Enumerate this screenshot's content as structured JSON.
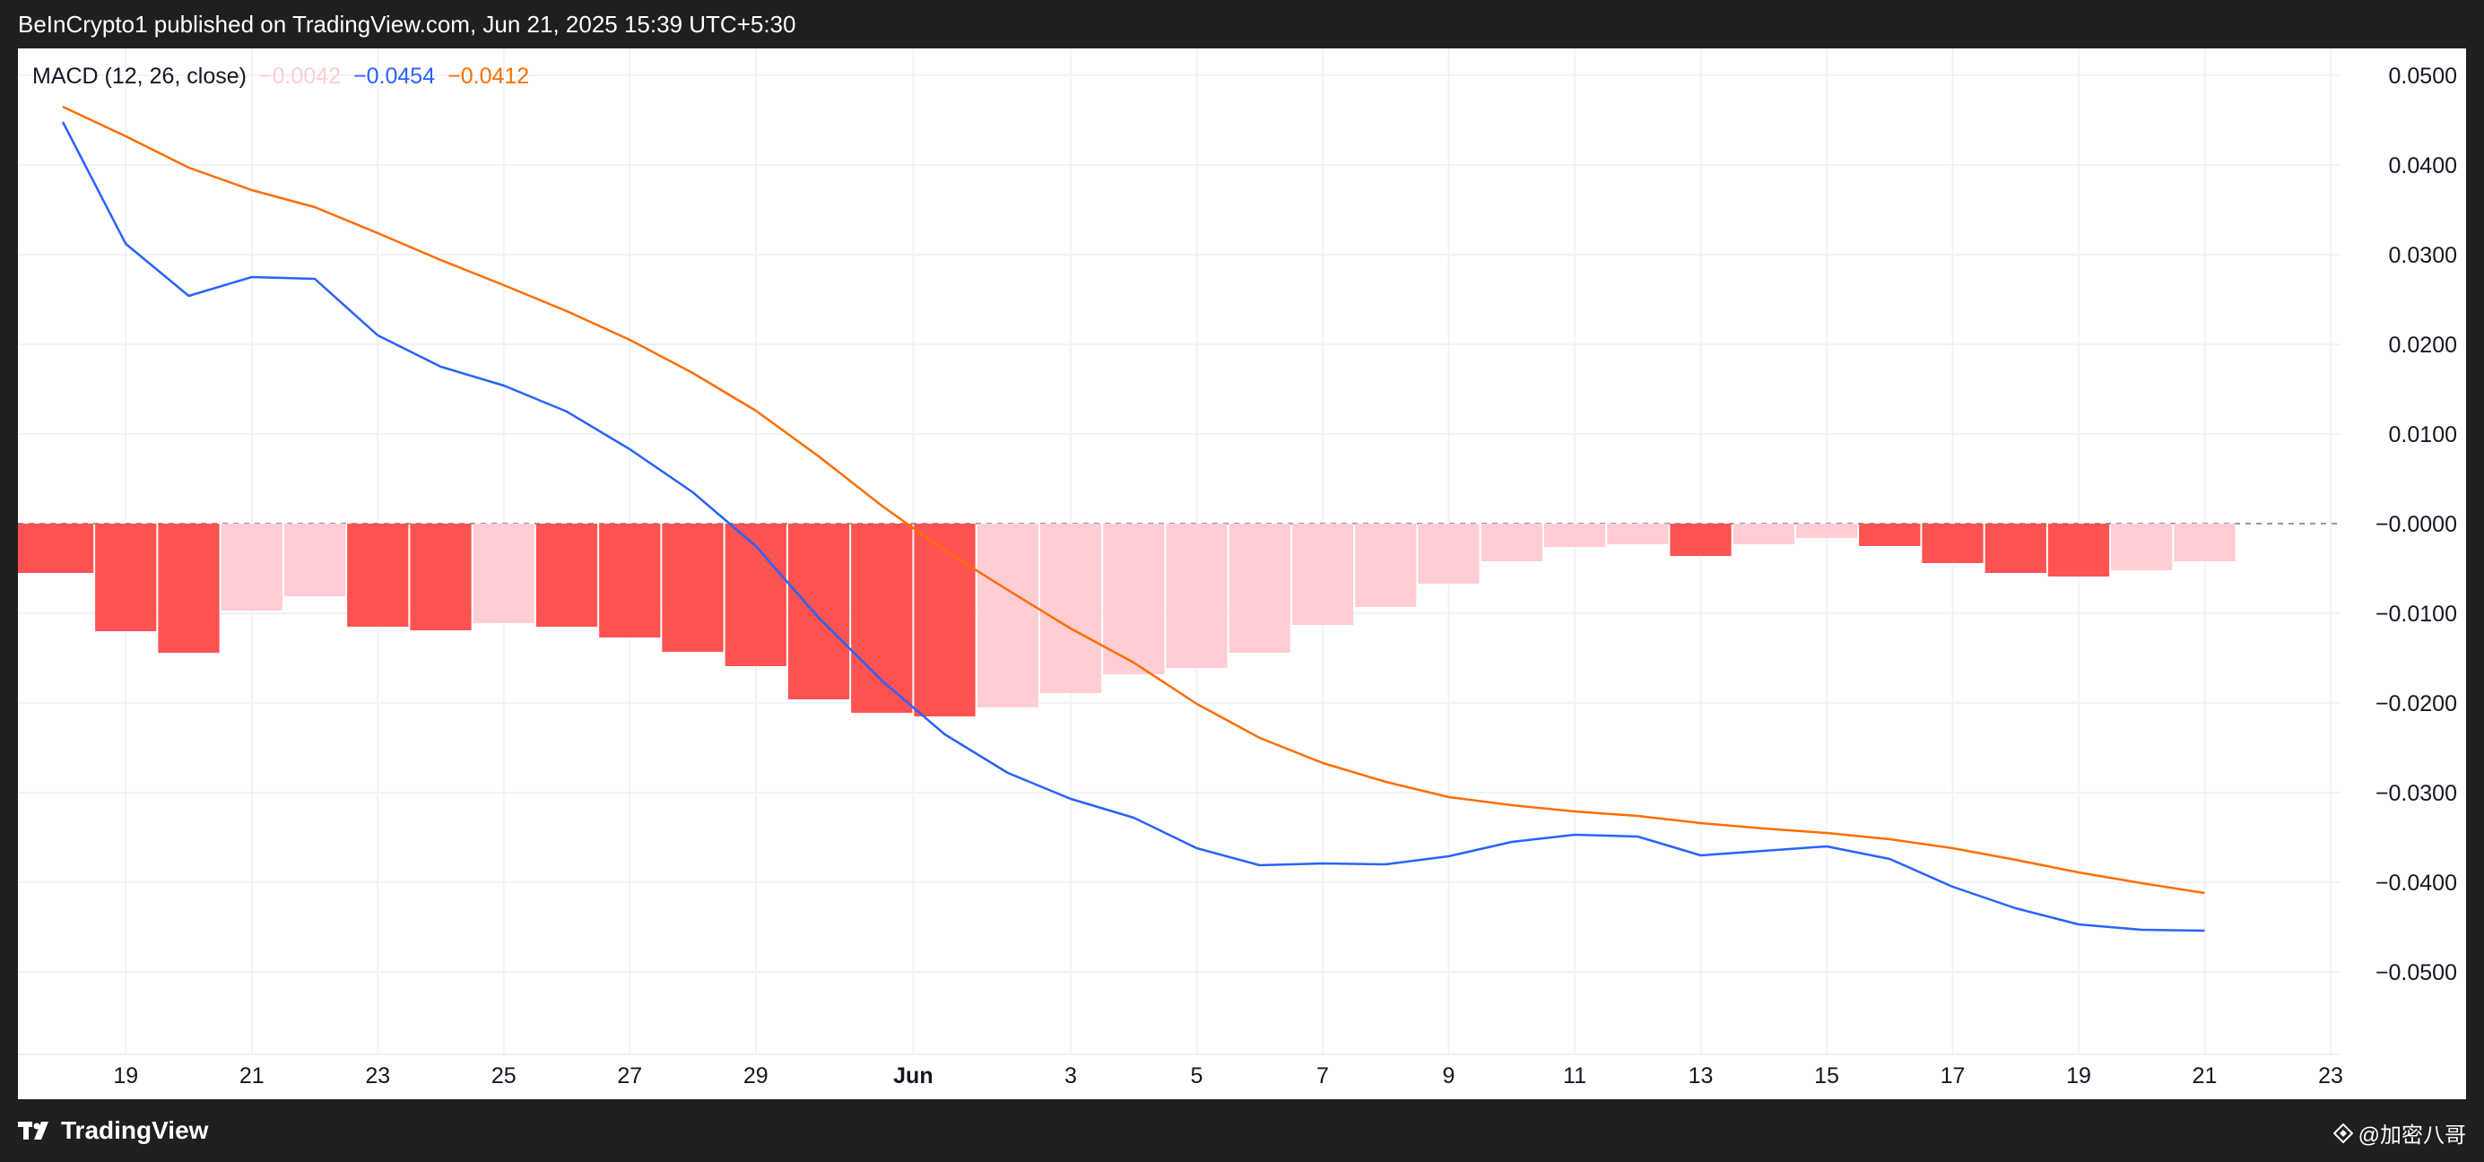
{
  "header": {
    "publisher_text": "BeInCrypto1 published on TradingView.com, Jun 21, 2025 15:39 UTC+5:30"
  },
  "legend": {
    "label": "MACD (12, 26, close)",
    "histogram_value": "−0.0042",
    "macd_value": "−0.0454",
    "signal_value": "−0.0412"
  },
  "footer": {
    "brand": "TradingView",
    "watermark": "@加密八哥"
  },
  "colors": {
    "macd_line": "#2962ff",
    "signal_line": "#ff6d00",
    "hist_strong_negative": "#ff5252",
    "hist_weak_negative": "#ffcdd2",
    "grid": "#f0f3fa"
  },
  "chart_data": {
    "type": "bar",
    "title": "MACD (12, 26, close)",
    "ylim": [
      -0.055,
      0.055
    ],
    "y_ticks": [
      0.05,
      0.04,
      0.03,
      0.02,
      0.01,
      0,
      -0.01,
      -0.02,
      -0.03,
      -0.04,
      -0.05
    ],
    "y_tick_labels": [
      "0.0500",
      "0.0400",
      "0.0300",
      "0.0200",
      "0.0100",
      "−0.0000",
      "−0.0100",
      "−0.0200",
      "−0.0300",
      "−0.0400",
      "−0.0500"
    ],
    "x_tick_labels": [
      "19",
      "21",
      "23",
      "25",
      "27",
      "29",
      "Jun",
      "3",
      "5",
      "7",
      "9",
      "11",
      "13",
      "15",
      "17",
      "19",
      "21",
      "23"
    ],
    "x_tick_index": [
      1,
      3,
      5,
      7,
      9,
      11,
      13.5,
      16,
      18,
      20,
      22,
      24,
      26,
      28,
      30,
      32,
      34,
      36
    ],
    "x_dates": [
      "May 18",
      "May 19",
      "May 20",
      "May 21",
      "May 22",
      "May 23",
      "May 24",
      "May 25",
      "May 26",
      "May 27",
      "May 28",
      "May 29",
      "May 30",
      "May 31",
      "Jun 1",
      "Jun 2",
      "Jun 3",
      "Jun 4",
      "Jun 5",
      "Jun 6",
      "Jun 7",
      "Jun 8",
      "Jun 9",
      "Jun 10",
      "Jun 11",
      "Jun 12",
      "Jun 13",
      "Jun 14",
      "Jun 15",
      "Jun 16",
      "Jun 17",
      "Jun 18",
      "Jun 19",
      "Jun 20",
      "Jun 21"
    ],
    "series": [
      {
        "name": "Histogram",
        "kind": "histogram",
        "values": [
          -0.0055,
          -0.012,
          -0.0144,
          -0.0097,
          -0.0081,
          -0.0115,
          -0.0119,
          -0.0111,
          -0.0115,
          -0.0127,
          -0.0143,
          -0.0159,
          -0.0196,
          -0.0211,
          -0.0215,
          -0.0205,
          -0.0189,
          -0.0168,
          -0.0161,
          -0.0144,
          -0.0113,
          -0.0093,
          -0.0067,
          -0.0042,
          -0.0026,
          -0.0023,
          -0.0036,
          -0.0023,
          -0.0016,
          -0.0025,
          -0.0044,
          -0.0055,
          -0.0059,
          -0.0052,
          -0.0042
        ],
        "colors": [
          "strong",
          "strong",
          "strong",
          "weak",
          "weak",
          "strong",
          "strong",
          "weak",
          "strong",
          "strong",
          "strong",
          "strong",
          "strong",
          "strong",
          "strong",
          "weak",
          "weak",
          "weak",
          "weak",
          "weak",
          "weak",
          "weak",
          "weak",
          "weak",
          "weak",
          "weak",
          "strong",
          "weak",
          "weak",
          "strong",
          "strong",
          "strong",
          "strong",
          "weak",
          "weak"
        ]
      },
      {
        "name": "MACD",
        "kind": "line",
        "values": [
          0.0448,
          0.0312,
          0.0254,
          0.0275,
          0.0273,
          0.021,
          0.0175,
          0.0154,
          0.0125,
          0.0083,
          0.0035,
          -0.0025,
          -0.0105,
          -0.0175,
          -0.0235,
          -0.0278,
          -0.0307,
          -0.0328,
          -0.0362,
          -0.0381,
          -0.0379,
          -0.038,
          -0.0371,
          -0.0355,
          -0.0347,
          -0.0349,
          -0.037,
          -0.0365,
          -0.036,
          -0.0374,
          -0.0405,
          -0.0429,
          -0.0447,
          -0.0453,
          -0.0454
        ]
      },
      {
        "name": "Signal",
        "kind": "line",
        "values": [
          0.0465,
          0.0432,
          0.0397,
          0.0372,
          0.0353,
          0.0324,
          0.0294,
          0.0266,
          0.0237,
          0.0205,
          0.0168,
          0.0126,
          0.0075,
          0.002,
          -0.003,
          -0.0074,
          -0.0117,
          -0.0155,
          -0.0201,
          -0.0239,
          -0.0267,
          -0.0288,
          -0.0305,
          -0.0314,
          -0.0321,
          -0.0326,
          -0.0334,
          -0.034,
          -0.0345,
          -0.0352,
          -0.0362,
          -0.0375,
          -0.0389,
          -0.0401,
          -0.0412
        ]
      }
    ],
    "grid": true
  }
}
